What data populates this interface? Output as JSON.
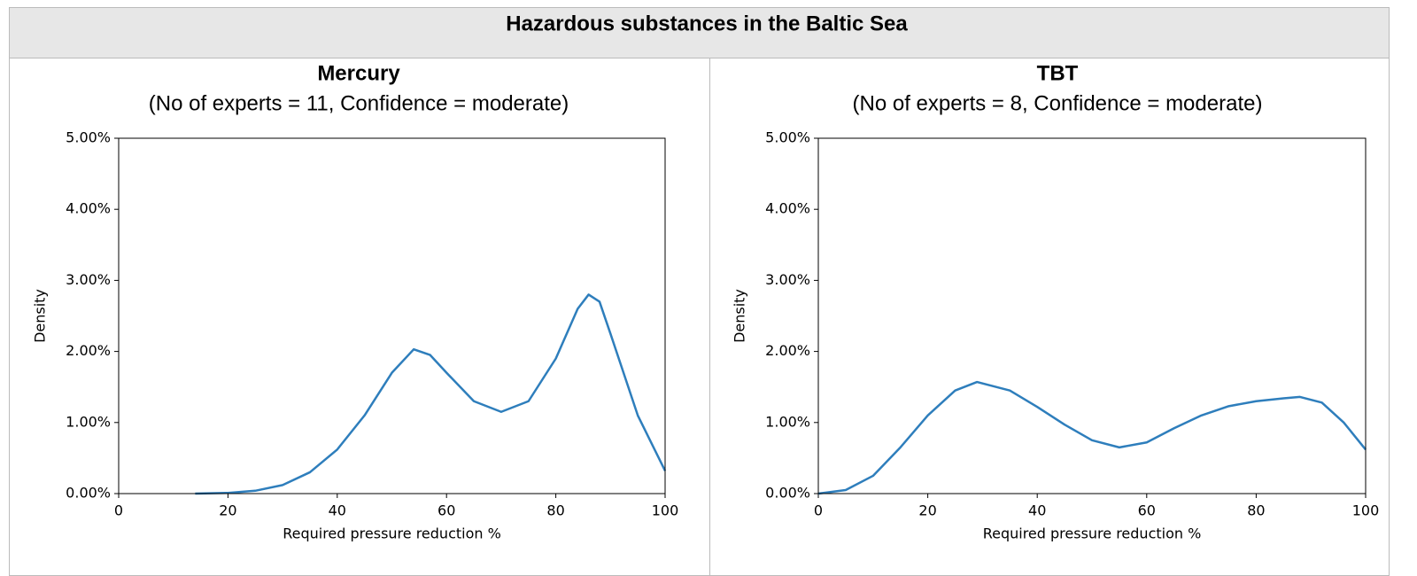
{
  "title": "Hazardous substances in the Baltic Sea",
  "chart_data": [
    {
      "type": "line",
      "title": "Mercury",
      "subtitle": "(No of experts = 11, Confidence = moderate)",
      "xlabel": "Required pressure reduction %",
      "ylabel": "Density",
      "x": [
        14,
        20,
        25,
        30,
        35,
        40,
        45,
        50,
        54,
        57,
        60,
        65,
        70,
        75,
        80,
        84,
        86,
        88,
        90,
        95,
        100
      ],
      "series": [
        {
          "color": "#2e7ebc",
          "values": [
            0,
            0.01,
            0.04,
            0.12,
            0.3,
            0.62,
            1.1,
            1.7,
            2.03,
            1.95,
            1.7,
            1.3,
            1.15,
            1.3,
            1.9,
            2.6,
            2.8,
            2.7,
            2.25,
            1.1,
            0.32
          ]
        }
      ],
      "xlim": [
        0,
        100
      ],
      "xticks": [
        0,
        20,
        40,
        60,
        80,
        100
      ],
      "ylim": [
        0,
        5
      ],
      "yticks": [
        {
          "value": 0,
          "label": "0.00%"
        },
        {
          "value": 1,
          "label": "1.00%"
        },
        {
          "value": 2,
          "label": "2.00%"
        },
        {
          "value": 3,
          "label": "3.00%"
        },
        {
          "value": 4,
          "label": "4.00%"
        },
        {
          "value": 5,
          "label": "5.00%"
        }
      ]
    },
    {
      "type": "line",
      "title": "TBT",
      "subtitle": "(No of experts = 8, Confidence = moderate)",
      "xlabel": "Required pressure reduction %",
      "ylabel": "Density",
      "x": [
        0,
        5,
        10,
        15,
        20,
        25,
        29,
        35,
        40,
        45,
        50,
        55,
        60,
        65,
        70,
        75,
        80,
        85,
        88,
        92,
        96,
        100
      ],
      "series": [
        {
          "color": "#2e7ebc",
          "values": [
            0,
            0.05,
            0.25,
            0.65,
            1.1,
            1.45,
            1.57,
            1.45,
            1.22,
            0.97,
            0.75,
            0.65,
            0.72,
            0.92,
            1.1,
            1.23,
            1.3,
            1.34,
            1.36,
            1.28,
            1.0,
            0.62
          ]
        }
      ],
      "xlim": [
        0,
        100
      ],
      "xticks": [
        0,
        20,
        40,
        60,
        80,
        100
      ],
      "ylim": [
        0,
        5
      ],
      "yticks": [
        {
          "value": 0,
          "label": "0.00%"
        },
        {
          "value": 1,
          "label": "1.00%"
        },
        {
          "value": 2,
          "label": "2.00%"
        },
        {
          "value": 3,
          "label": "3.00%"
        },
        {
          "value": 4,
          "label": "4.00%"
        },
        {
          "value": 5,
          "label": "5.00%"
        }
      ]
    }
  ]
}
